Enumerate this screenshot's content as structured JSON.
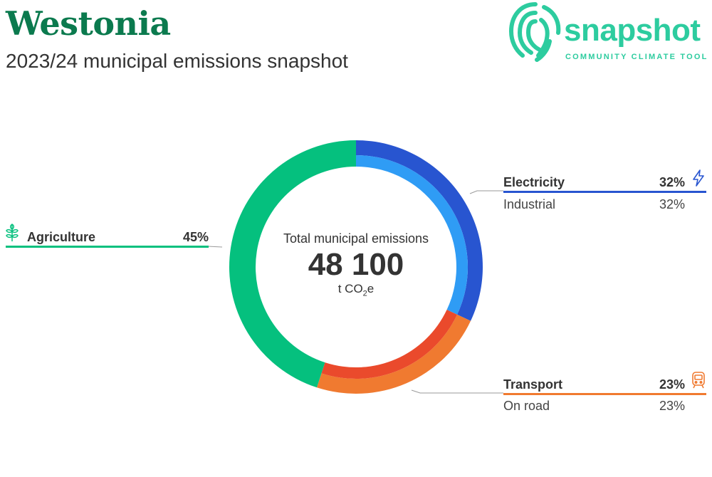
{
  "header": {
    "title": "Westonia",
    "subtitle": "2023/24 municipal emissions snapshot"
  },
  "logo": {
    "name": "snapshot",
    "tagline": "COMMUNITY CLIMATE TOOL"
  },
  "center": {
    "label": "Total municipal emissions",
    "value": "48 100",
    "unit_prefix": "t CO",
    "unit_sub": "2",
    "unit_suffix": "e"
  },
  "chart_data": {
    "type": "pie",
    "total": 48100,
    "unit": "t CO2e",
    "series": [
      {
        "name": "Electricity",
        "percent": 32,
        "color": "#2855d0",
        "subcategories": [
          {
            "name": "Industrial",
            "percent": 32,
            "color": "#2f9cf5"
          }
        ]
      },
      {
        "name": "Transport",
        "percent": 23,
        "color": "#f07a30",
        "subcategories": [
          {
            "name": "On road",
            "percent": 23,
            "color": "#ea4a2c"
          }
        ]
      },
      {
        "name": "Agriculture",
        "percent": 45,
        "color": "#05c07e",
        "subcategories": []
      }
    ]
  },
  "labels": {
    "electricity": {
      "name": "Electricity",
      "pct": "32%",
      "sub_name": "Industrial",
      "sub_pct": "32%",
      "icon": "lightning-icon"
    },
    "transport": {
      "name": "Transport",
      "pct": "23%",
      "sub_name": "On road",
      "sub_pct": "23%",
      "icon": "train-icon"
    },
    "agriculture": {
      "name": "Agriculture",
      "pct": "45%",
      "icon": "wheat-icon"
    }
  },
  "colors": {
    "title": "#0b7a4e",
    "logo": "#2dcc9f",
    "electricity": "#2855d0",
    "industrial": "#2f9cf5",
    "transport": "#f07a30",
    "on_road": "#ea4a2c",
    "agriculture": "#05c07e"
  }
}
